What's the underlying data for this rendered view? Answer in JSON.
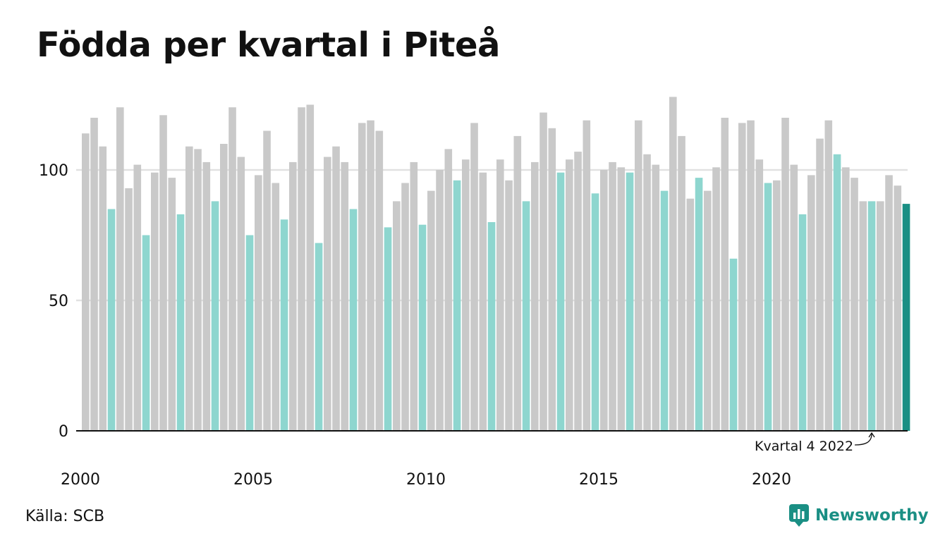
{
  "title": "Födda per kvartal i Piteå",
  "source": "Källa: SCB",
  "brand": {
    "name": "Newsworthy",
    "logo_icon": "newsworthy-logo-icon"
  },
  "colors": {
    "default_bar": "#c9c9c9",
    "quarter4_bar": "#8ed6cf",
    "latest_bar": "#1a8f84",
    "grid": "#e1e1e1",
    "baseline": "#111111",
    "brand": "#1a8f84"
  },
  "chart_data": {
    "type": "bar",
    "title": "Födda per kvartal i Piteå",
    "xlabel": "",
    "ylabel": "",
    "ylim": [
      0,
      128
    ],
    "yticks": [
      0,
      50,
      100
    ],
    "xtick_labels": [
      "2000",
      "2005",
      "2010",
      "2015",
      "2020"
    ],
    "grid": true,
    "legend": "none",
    "highlight": "every fourth quarter in light teal, latest quarter in dark teal",
    "annotation": {
      "text": "Kvartal 4 2022",
      "target": "2022 Q4"
    },
    "categories": [
      "2000 Q1",
      "2000 Q2",
      "2000 Q3",
      "2000 Q4",
      "2001 Q1",
      "2001 Q2",
      "2001 Q3",
      "2001 Q4",
      "2002 Q1",
      "2002 Q2",
      "2002 Q3",
      "2002 Q4",
      "2003 Q1",
      "2003 Q2",
      "2003 Q3",
      "2003 Q4",
      "2004 Q1",
      "2004 Q2",
      "2004 Q3",
      "2004 Q4",
      "2005 Q1",
      "2005 Q2",
      "2005 Q3",
      "2005 Q4",
      "2006 Q1",
      "2006 Q2",
      "2006 Q3",
      "2006 Q4",
      "2007 Q1",
      "2007 Q2",
      "2007 Q3",
      "2007 Q4",
      "2008 Q1",
      "2008 Q2",
      "2008 Q3",
      "2008 Q4",
      "2009 Q1",
      "2009 Q2",
      "2009 Q3",
      "2009 Q4",
      "2010 Q1",
      "2010 Q2",
      "2010 Q3",
      "2010 Q4",
      "2011 Q1",
      "2011 Q2",
      "2011 Q3",
      "2011 Q4",
      "2012 Q1",
      "2012 Q2",
      "2012 Q3",
      "2012 Q4",
      "2013 Q1",
      "2013 Q2",
      "2013 Q3",
      "2013 Q4",
      "2014 Q1",
      "2014 Q2",
      "2014 Q3",
      "2014 Q4",
      "2015 Q1",
      "2015 Q2",
      "2015 Q3",
      "2015 Q4",
      "2016 Q1",
      "2016 Q2",
      "2016 Q3",
      "2016 Q4",
      "2017 Q1",
      "2017 Q2",
      "2017 Q3",
      "2017 Q4",
      "2018 Q1",
      "2018 Q2",
      "2018 Q3",
      "2018 Q4",
      "2019 Q1",
      "2019 Q2",
      "2019 Q3",
      "2019 Q4",
      "2020 Q1",
      "2020 Q2",
      "2020 Q3",
      "2020 Q4",
      "2021 Q1",
      "2021 Q2",
      "2021 Q3",
      "2021 Q4",
      "2022 Q1",
      "2022 Q2",
      "2022 Q3",
      "2022 Q4",
      "2023 Q1",
      "2023 Q2",
      "2023 Q3",
      "2023 Q4"
    ],
    "values": [
      114,
      120,
      109,
      85,
      124,
      93,
      102,
      75,
      99,
      121,
      97,
      83,
      109,
      108,
      103,
      88,
      110,
      124,
      105,
      75,
      98,
      115,
      95,
      81,
      103,
      124,
      125,
      72,
      105,
      109,
      103,
      85,
      118,
      119,
      115,
      78,
      88,
      95,
      103,
      79,
      92,
      100,
      108,
      96,
      104,
      118,
      99,
      80,
      104,
      96,
      113,
      88,
      103,
      122,
      116,
      99,
      104,
      107,
      119,
      91,
      100,
      103,
      101,
      99,
      119,
      106,
      102,
      92,
      128,
      113,
      89,
      97,
      92,
      101,
      120,
      66,
      118,
      119,
      104,
      95,
      96,
      120,
      102,
      83,
      98,
      112,
      119,
      106,
      101,
      97,
      88,
      88,
      88,
      98,
      94,
      87
    ]
  }
}
